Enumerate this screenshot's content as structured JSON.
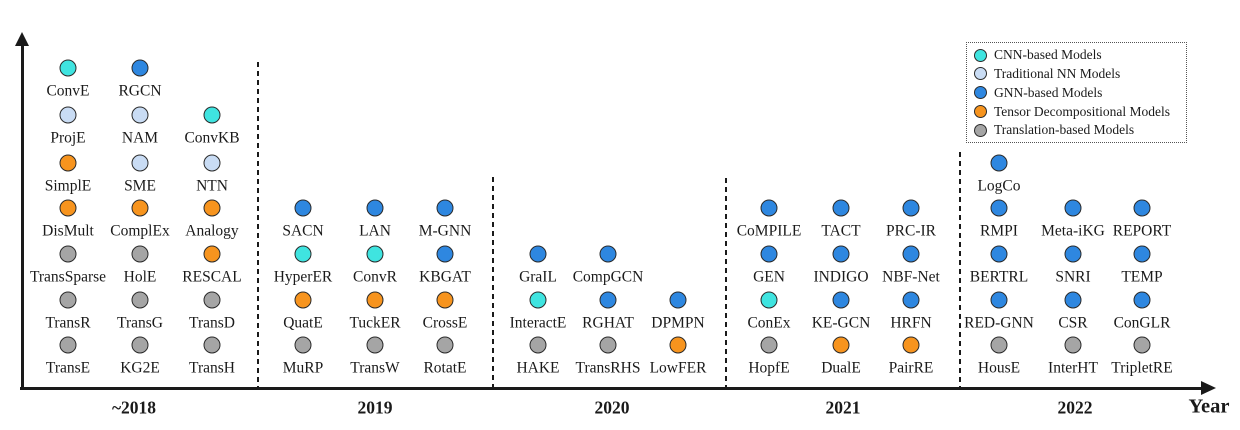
{
  "figure": {
    "year_axis_label": "Year"
  },
  "colors": {
    "cnn": "#3FE4E0",
    "traditional": "#C9DCF4",
    "gnn": "#2E87E0",
    "tensor": "#F7941E",
    "translation": "#A5A5A5"
  },
  "legend": {
    "items": [
      {
        "key": "cnn",
        "label": "CNN-based Models"
      },
      {
        "key": "traditional",
        "label": "Traditional NN Models"
      },
      {
        "key": "gnn",
        "label": "GNN-based Models"
      },
      {
        "key": "tensor",
        "label": "Tensor Decompositional Models"
      },
      {
        "key": "translation",
        "label": "Translation-based Models"
      }
    ]
  },
  "sections": [
    {
      "year": "~2018",
      "models": [
        {
          "name": "ConvE",
          "category": "cnn",
          "row": 1,
          "col": 0
        },
        {
          "name": "RGCN",
          "category": "gnn",
          "row": 1,
          "col": 1
        },
        {
          "name": "ProjE",
          "category": "traditional",
          "row": 2,
          "col": 0
        },
        {
          "name": "NAM",
          "category": "traditional",
          "row": 2,
          "col": 1
        },
        {
          "name": "ConvKB",
          "category": "cnn",
          "row": 2,
          "col": 2
        },
        {
          "name": "SimplE",
          "category": "tensor",
          "row": 3,
          "col": 0
        },
        {
          "name": "SME",
          "category": "traditional",
          "row": 3,
          "col": 1
        },
        {
          "name": "NTN",
          "category": "traditional",
          "row": 3,
          "col": 2
        },
        {
          "name": "DisMult",
          "category": "tensor",
          "row": 4,
          "col": 0
        },
        {
          "name": "ComplEx",
          "category": "tensor",
          "row": 4,
          "col": 1
        },
        {
          "name": "Analogy",
          "category": "tensor",
          "row": 4,
          "col": 2
        },
        {
          "name": "TransSparse",
          "category": "translation",
          "row": 5,
          "col": 0
        },
        {
          "name": "HolE",
          "category": "translation",
          "row": 5,
          "col": 1
        },
        {
          "name": "RESCAL",
          "category": "tensor",
          "row": 5,
          "col": 2
        },
        {
          "name": "TransR",
          "category": "translation",
          "row": 6,
          "col": 0
        },
        {
          "name": "TransG",
          "category": "translation",
          "row": 6,
          "col": 1
        },
        {
          "name": "TransD",
          "category": "translation",
          "row": 6,
          "col": 2
        },
        {
          "name": "TransE",
          "category": "translation",
          "row": 7,
          "col": 0
        },
        {
          "name": "KG2E",
          "category": "translation",
          "row": 7,
          "col": 1
        },
        {
          "name": "TransH",
          "category": "translation",
          "row": 7,
          "col": 2
        }
      ]
    },
    {
      "year": "2019",
      "models": [
        {
          "name": "SACN",
          "category": "gnn",
          "row": 4,
          "col": 0
        },
        {
          "name": "LAN",
          "category": "gnn",
          "row": 4,
          "col": 1
        },
        {
          "name": "M-GNN",
          "category": "gnn",
          "row": 4,
          "col": 2
        },
        {
          "name": "HyperER",
          "category": "cnn",
          "row": 5,
          "col": 0
        },
        {
          "name": "ConvR",
          "category": "cnn",
          "row": 5,
          "col": 1
        },
        {
          "name": "KBGAT",
          "category": "gnn",
          "row": 5,
          "col": 2
        },
        {
          "name": "QuatE",
          "category": "tensor",
          "row": 6,
          "col": 0
        },
        {
          "name": "TuckER",
          "category": "tensor",
          "row": 6,
          "col": 1
        },
        {
          "name": "CrossE",
          "category": "tensor",
          "row": 6,
          "col": 2
        },
        {
          "name": "MuRP",
          "category": "translation",
          "row": 7,
          "col": 0
        },
        {
          "name": "TransW",
          "category": "translation",
          "row": 7,
          "col": 1
        },
        {
          "name": "RotatE",
          "category": "translation",
          "row": 7,
          "col": 2
        }
      ]
    },
    {
      "year": "2020",
      "models": [
        {
          "name": "GraIL",
          "category": "gnn",
          "row": 5,
          "col": 0
        },
        {
          "name": "CompGCN",
          "category": "gnn",
          "row": 5,
          "col": 1
        },
        {
          "name": "InteractE",
          "category": "cnn",
          "row": 6,
          "col": 0
        },
        {
          "name": "RGHAT",
          "category": "gnn",
          "row": 6,
          "col": 1
        },
        {
          "name": "DPMPN",
          "category": "gnn",
          "row": 6,
          "col": 2
        },
        {
          "name": "HAKE",
          "category": "translation",
          "row": 7,
          "col": 0
        },
        {
          "name": "TransRHS",
          "category": "translation",
          "row": 7,
          "col": 1
        },
        {
          "name": "LowFER",
          "category": "tensor",
          "row": 7,
          "col": 2
        }
      ]
    },
    {
      "year": "2021",
      "models": [
        {
          "name": "CoMPILE",
          "category": "gnn",
          "row": 4,
          "col": 0
        },
        {
          "name": "TACT",
          "category": "gnn",
          "row": 4,
          "col": 1
        },
        {
          "name": "PRC-IR",
          "category": "gnn",
          "row": 4,
          "col": 2
        },
        {
          "name": "GEN",
          "category": "gnn",
          "row": 5,
          "col": 0
        },
        {
          "name": "INDIGO",
          "category": "gnn",
          "row": 5,
          "col": 1
        },
        {
          "name": "NBF-Net",
          "category": "gnn",
          "row": 5,
          "col": 2
        },
        {
          "name": "ConEx",
          "category": "cnn",
          "row": 6,
          "col": 0
        },
        {
          "name": "KE-GCN",
          "category": "gnn",
          "row": 6,
          "col": 1
        },
        {
          "name": "HRFN",
          "category": "gnn",
          "row": 6,
          "col": 2
        },
        {
          "name": "HopfE",
          "category": "translation",
          "row": 7,
          "col": 0
        },
        {
          "name": "DualE",
          "category": "tensor",
          "row": 7,
          "col": 1
        },
        {
          "name": "PairRE",
          "category": "tensor",
          "row": 7,
          "col": 2
        }
      ]
    },
    {
      "year": "2022",
      "models": [
        {
          "name": "LogCo",
          "category": "gnn",
          "row": 3,
          "col": 0
        },
        {
          "name": "RMPI",
          "category": "gnn",
          "row": 4,
          "col": 0
        },
        {
          "name": "Meta-iKG",
          "category": "gnn",
          "row": 4,
          "col": 1
        },
        {
          "name": "REPORT",
          "category": "gnn",
          "row": 4,
          "col": 2
        },
        {
          "name": "BERTRL",
          "category": "gnn",
          "row": 5,
          "col": 0
        },
        {
          "name": "SNRI",
          "category": "gnn",
          "row": 5,
          "col": 1
        },
        {
          "name": "TEMP",
          "category": "gnn",
          "row": 5,
          "col": 2
        },
        {
          "name": "RED-GNN",
          "category": "gnn",
          "row": 6,
          "col": 0
        },
        {
          "name": "CSR",
          "category": "gnn",
          "row": 6,
          "col": 1
        },
        {
          "name": "ConGLR",
          "category": "gnn",
          "row": 6,
          "col": 2
        },
        {
          "name": "HousE",
          "category": "translation",
          "row": 7,
          "col": 0
        },
        {
          "name": "InterHT",
          "category": "translation",
          "row": 7,
          "col": 1
        },
        {
          "name": "TripletRE",
          "category": "translation",
          "row": 7,
          "col": 2
        }
      ]
    }
  ]
}
